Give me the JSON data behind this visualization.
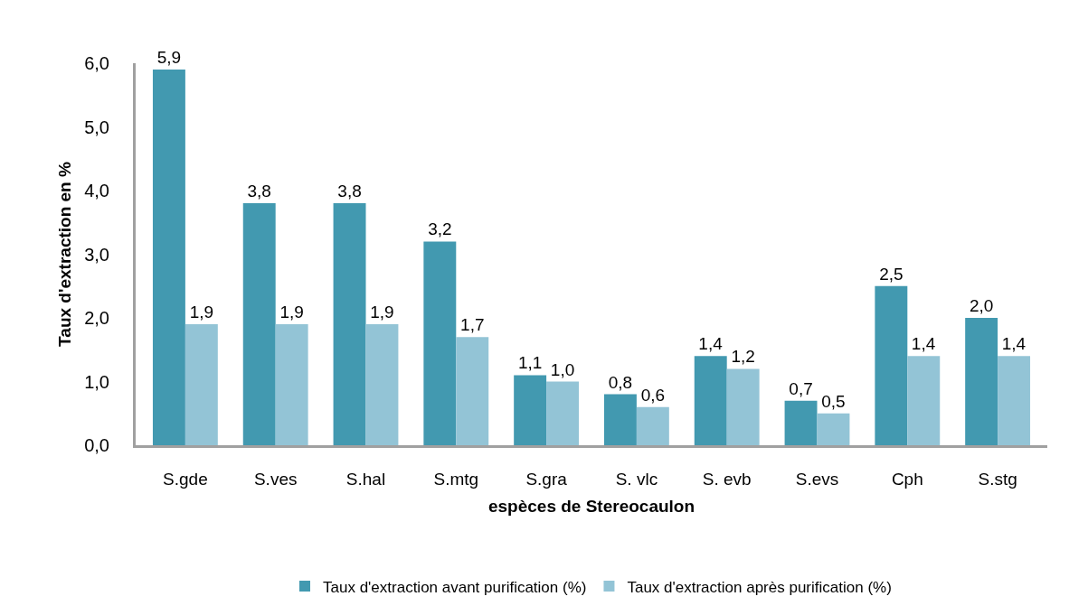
{
  "chart_data": {
    "type": "bar",
    "xlabel": "espèces de Stereocaulon",
    "ylabel": "Taux d'extraction en %",
    "categories": [
      "S.gde",
      "S.ves",
      "S.hal",
      "S.mtg",
      "S.gra",
      "S. vlc",
      "S. evb",
      "S.evs",
      "Cph",
      "S.stg"
    ],
    "series": [
      {
        "name": "Taux d'extraction avant purification (%)",
        "color": "#4299b0",
        "values": [
          5.9,
          3.8,
          3.8,
          3.2,
          1.1,
          0.8,
          1.4,
          0.7,
          2.5,
          2.0
        ],
        "value_labels": [
          "5,9",
          "3,8",
          "3,8",
          "3,2",
          "1,1",
          "0,8",
          "1,4",
          "0,7",
          "2,5",
          "2,0"
        ]
      },
      {
        "name": "Taux d'extraction après purification (%)",
        "color": "#93c4d6",
        "values": [
          1.9,
          1.9,
          1.9,
          1.7,
          1.0,
          0.6,
          1.2,
          0.5,
          1.4,
          1.4
        ],
        "value_labels": [
          "1,9",
          "1,9",
          "1,9",
          "1,7",
          "1,0",
          "0,6",
          "1,2",
          "0,5",
          "1,4",
          "1,4"
        ]
      }
    ],
    "ylim": [
      0,
      6
    ],
    "yticks": [
      {
        "value": 0,
        "label": "0,0"
      },
      {
        "value": 1,
        "label": "1,0"
      },
      {
        "value": 2,
        "label": "2,0"
      },
      {
        "value": 3,
        "label": "3,0"
      },
      {
        "value": 4,
        "label": "4,0"
      },
      {
        "value": 5,
        "label": "5,0"
      },
      {
        "value": 6,
        "label": "6,0"
      }
    ],
    "grid": false,
    "legend": "bottom"
  }
}
